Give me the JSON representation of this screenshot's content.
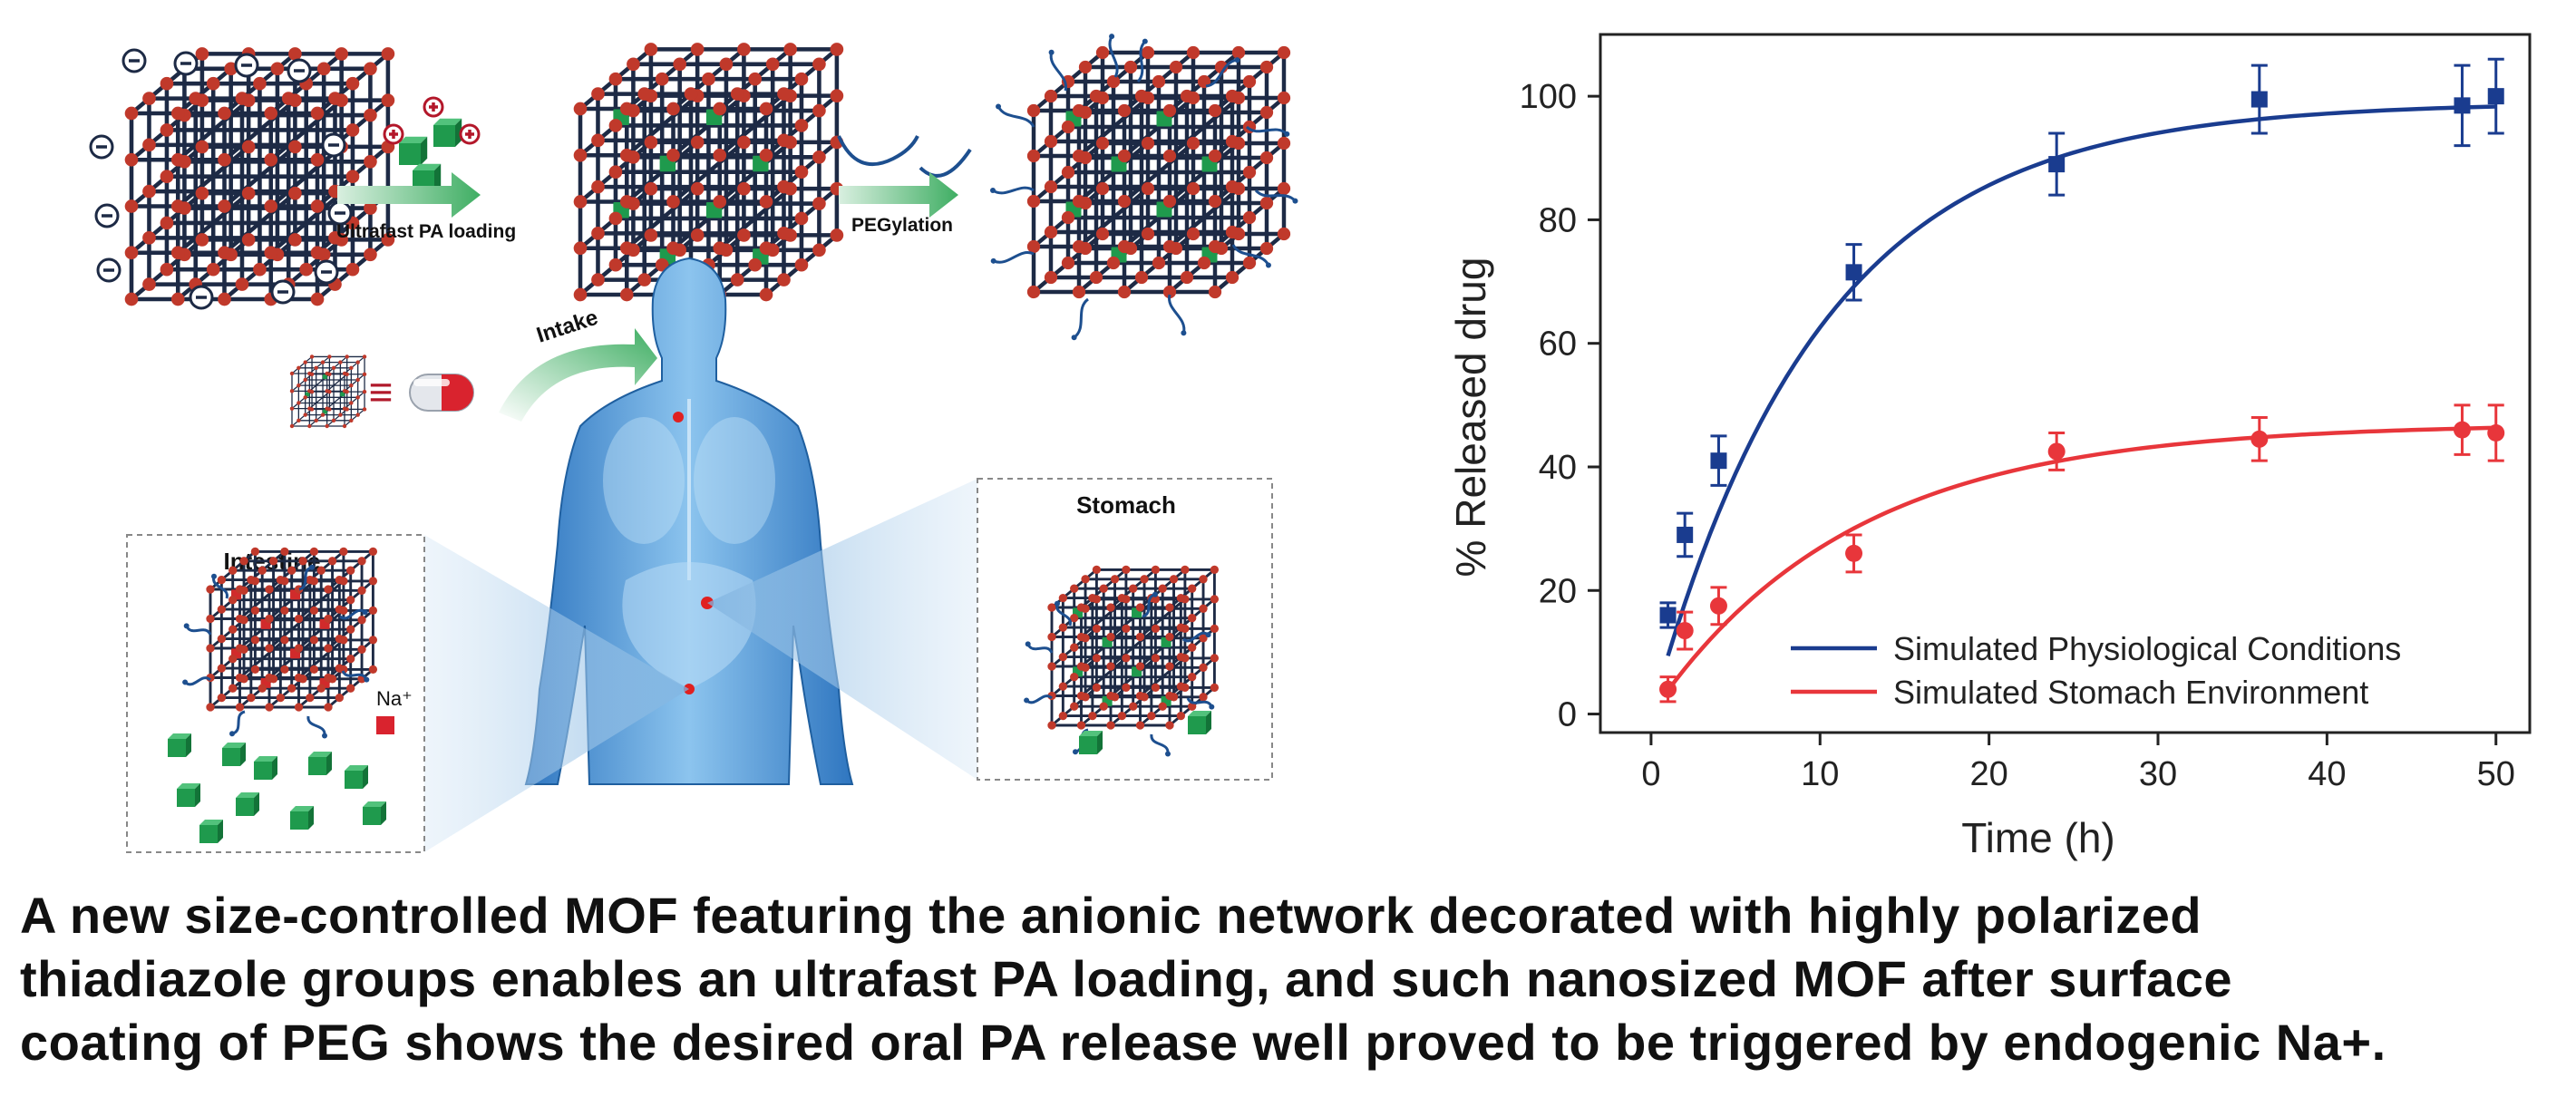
{
  "scheme": {
    "step1_label": "Ultrafast PA loading",
    "step2_label": "PEGylation",
    "intake_label": "Intake",
    "equiv_symbol": "≡",
    "stomach_label": "Stomach",
    "intestine_label": "Intestine",
    "na_label": "Na⁺",
    "charge_neg": "−",
    "charge_pos": "+",
    "colors": {
      "framework": "#1d2a45",
      "node": "#c0392b",
      "guest": "#1f9a4d",
      "body": "#5aa3dc",
      "arrow": "#45b36b"
    }
  },
  "chart_data": {
    "type": "scatter",
    "xlabel": "Time (h)",
    "ylabel": "% Released drug",
    "xlim": [
      -3,
      52
    ],
    "ylim": [
      -3,
      110
    ],
    "xticks": [
      0,
      10,
      20,
      30,
      40,
      50
    ],
    "yticks": [
      0,
      20,
      40,
      60,
      80,
      100
    ],
    "legend_position": "bottom-right",
    "series": [
      {
        "name": "Simulated Physiological Conditions",
        "color": "#1a3c8f",
        "marker": "square",
        "x": [
          1,
          2,
          4,
          12,
          24,
          36,
          48,
          50
        ],
        "y": [
          16,
          29,
          41,
          71.5,
          89,
          99.5,
          98.5,
          100
        ],
        "err": [
          2,
          3.5,
          4,
          4.5,
          5,
          5.5,
          6.5,
          6
        ],
        "fit": {
          "model": "exponential",
          "plateau": 99,
          "rate": 0.1
        }
      },
      {
        "name": "Simulated Stomach Environment",
        "color": "#e8363b",
        "marker": "circle",
        "x": [
          1,
          2,
          4,
          12,
          24,
          36,
          48,
          50
        ],
        "y": [
          4,
          13.5,
          17.5,
          26,
          42.5,
          44.5,
          46,
          45.5
        ],
        "err": [
          2,
          3,
          3,
          3,
          3,
          3.5,
          4,
          4.5
        ],
        "fit": {
          "model": "exponential",
          "plateau": 47,
          "rate": 0.085
        }
      }
    ]
  },
  "caption": [
    "A new size-controlled MOF featuring the anionic network decorated with highly polarized",
    "thiadiazole groups enables an ultrafast PA loading, and such nanosized MOF after surface",
    "coating of PEG shows the desired oral PA release well proved to be triggered by endogenic Na+."
  ]
}
